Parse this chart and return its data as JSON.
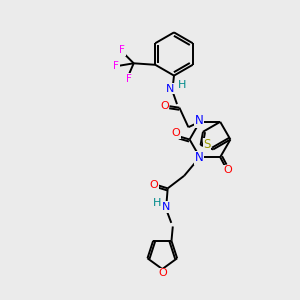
{
  "background_color": "#ebebeb",
  "atom_colors": {
    "N": "#0000ff",
    "O": "#ff0000",
    "S": "#999900",
    "F": "#ff00ff",
    "H_NH": "#008b8b"
  },
  "bond_color": "#000000",
  "figsize": [
    3.0,
    3.0
  ],
  "dpi": 100
}
